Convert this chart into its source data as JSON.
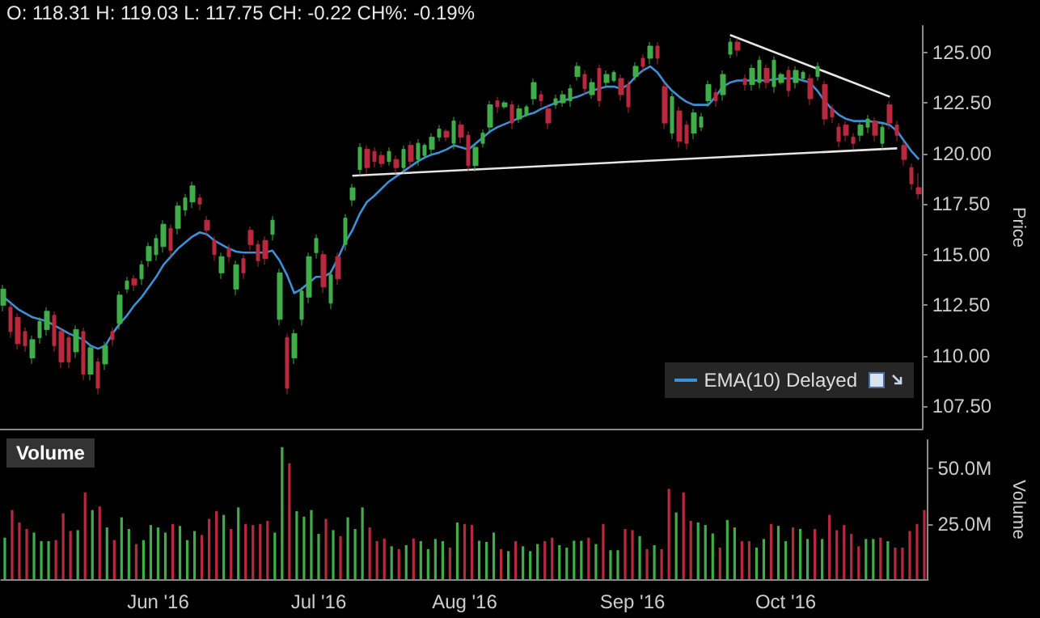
{
  "chart_data": [
    {
      "type": "candlestick",
      "ylabel": "Price",
      "annotations": [
        "O: 118.31 H: 119.03 L: 117.75 CH: -0.22 CH%: -0.19%"
      ],
      "legend": "bottom right",
      "tick_labels": "y",
      "ylim": [
        106.4,
        126.3
      ],
      "yticks": [
        {
          "value": 107.5,
          "label": "107.50"
        },
        {
          "value": 110,
          "label": "110.00"
        },
        {
          "value": 112.5,
          "label": "112.50"
        },
        {
          "value": 115,
          "label": "115.00"
        },
        {
          "value": 117.5,
          "label": "117.50"
        },
        {
          "value": 120,
          "label": "120.00"
        },
        {
          "value": 122.5,
          "label": "122.50"
        },
        {
          "value": 125,
          "label": "125.00"
        }
      ],
      "ohlc": [
        [
          112.5,
          113.5,
          112.2,
          113.3
        ],
        [
          112.4,
          112.6,
          110.9,
          111.2
        ],
        [
          111.9,
          112.1,
          110.3,
          110.6
        ],
        [
          111.2,
          111.4,
          110.2,
          110.5
        ],
        [
          109.9,
          111.0,
          109.6,
          110.8
        ],
        [
          110.9,
          111.9,
          110.6,
          111.7
        ],
        [
          111.3,
          112.4,
          111.0,
          112.2
        ],
        [
          112.0,
          112.2,
          110.2,
          110.5
        ],
        [
          111.2,
          111.4,
          109.4,
          109.7
        ],
        [
          110.9,
          111.1,
          109.4,
          109.7
        ],
        [
          110.2,
          111.5,
          109.9,
          111.3
        ],
        [
          111.2,
          111.4,
          108.8,
          109.1
        ],
        [
          109.1,
          110.6,
          108.8,
          110.4
        ],
        [
          109.7,
          109.9,
          108.1,
          108.4
        ],
        [
          109.6,
          110.7,
          109.3,
          110.5
        ],
        [
          111.2,
          111.4,
          110.5,
          110.8
        ],
        [
          111.6,
          113.2,
          111.3,
          113.0
        ],
        [
          113.3,
          113.9,
          113.1,
          113.7
        ],
        [
          113.8,
          114.0,
          113.2,
          113.5
        ],
        [
          113.8,
          114.7,
          113.5,
          114.5
        ],
        [
          114.7,
          115.6,
          114.4,
          115.4
        ],
        [
          115.0,
          116.0,
          114.7,
          115.8
        ],
        [
          115.4,
          116.7,
          115.1,
          116.5
        ],
        [
          116.3,
          116.5,
          114.9,
          115.2
        ],
        [
          116.3,
          117.6,
          116.0,
          117.4
        ],
        [
          117.2,
          118.0,
          116.9,
          117.8
        ],
        [
          117.6,
          118.6,
          117.3,
          118.4
        ],
        [
          117.8,
          118.0,
          117.2,
          117.5
        ],
        [
          116.7,
          116.9,
          115.9,
          116.2
        ],
        [
          115.7,
          115.9,
          114.7,
          115.0
        ],
        [
          114.1,
          115.1,
          113.8,
          114.9
        ],
        [
          115.3,
          115.5,
          114.6,
          114.9
        ],
        [
          113.3,
          114.7,
          113.0,
          114.5
        ],
        [
          114.8,
          115.0,
          113.8,
          114.1
        ],
        [
          116.2,
          116.4,
          115.2,
          115.5
        ],
        [
          115.5,
          115.7,
          114.4,
          114.7
        ],
        [
          115.7,
          115.9,
          114.5,
          114.8
        ],
        [
          116.0,
          116.9,
          115.7,
          116.7
        ],
        [
          111.8,
          114.3,
          111.5,
          114.1
        ],
        [
          110.9,
          111.1,
          108.1,
          108.4
        ],
        [
          109.9,
          111.3,
          109.6,
          111.1
        ],
        [
          111.8,
          113.4,
          111.5,
          113.2
        ],
        [
          112.9,
          115.1,
          112.6,
          114.9
        ],
        [
          115.1,
          116.0,
          114.8,
          115.8
        ],
        [
          115.0,
          115.2,
          113.1,
          113.4
        ],
        [
          112.6,
          114.2,
          112.3,
          114.0
        ],
        [
          114.9,
          115.1,
          113.5,
          113.8
        ],
        [
          115.5,
          117.0,
          115.2,
          116.8
        ],
        [
          117.7,
          118.5,
          117.4,
          118.3
        ],
        [
          119.2,
          120.5,
          118.9,
          120.3
        ],
        [
          120.2,
          120.4,
          119.0,
          119.3
        ],
        [
          120.1,
          120.3,
          119.3,
          119.6
        ],
        [
          119.9,
          120.1,
          119.3,
          119.5
        ],
        [
          119.6,
          120.3,
          119.4,
          120.1
        ],
        [
          119.7,
          119.9,
          119.0,
          119.3
        ],
        [
          119.3,
          120.4,
          119.0,
          120.2
        ],
        [
          120.4,
          120.6,
          119.3,
          119.6
        ],
        [
          119.7,
          120.7,
          119.4,
          120.5
        ],
        [
          119.9,
          120.5,
          119.8,
          120.4
        ],
        [
          120.2,
          121.0,
          119.9,
          120.8
        ],
        [
          120.8,
          121.4,
          120.6,
          121.2
        ],
        [
          121.1,
          121.2,
          120.6,
          120.8
        ],
        [
          120.5,
          121.8,
          120.2,
          121.6
        ],
        [
          121.4,
          121.6,
          120.5,
          120.8
        ],
        [
          120.9,
          121.1,
          119.1,
          119.4
        ],
        [
          119.4,
          120.5,
          119.1,
          120.3
        ],
        [
          120.5,
          121.2,
          120.3,
          121.0
        ],
        [
          121.3,
          122.6,
          121.0,
          122.4
        ],
        [
          122.6,
          122.8,
          122.0,
          122.3
        ],
        [
          122.3,
          122.6,
          122.2,
          122.5
        ],
        [
          122.4,
          122.6,
          121.2,
          121.5
        ],
        [
          121.7,
          122.4,
          121.5,
          122.2
        ],
        [
          121.9,
          122.4,
          121.8,
          122.3
        ],
        [
          122.7,
          123.7,
          122.4,
          123.5
        ],
        [
          122.9,
          123.1,
          122.3,
          122.6
        ],
        [
          122.2,
          122.4,
          121.2,
          121.5
        ],
        [
          122.4,
          122.9,
          122.2,
          122.7
        ],
        [
          122.5,
          123.1,
          122.3,
          122.9
        ],
        [
          122.6,
          123.4,
          122.3,
          123.2
        ],
        [
          123.8,
          124.5,
          123.6,
          124.3
        ],
        [
          123.9,
          124.1,
          122.9,
          123.2
        ],
        [
          122.9,
          123.7,
          122.7,
          123.5
        ],
        [
          124.2,
          124.4,
          122.3,
          122.6
        ],
        [
          123.5,
          124.1,
          123.3,
          123.9
        ],
        [
          123.6,
          124.1,
          123.5,
          124.0
        ],
        [
          123.7,
          123.9,
          122.6,
          122.9
        ],
        [
          123.4,
          123.6,
          122.0,
          122.3
        ],
        [
          123.8,
          124.5,
          123.6,
          124.3
        ],
        [
          124.7,
          124.9,
          124.0,
          124.3
        ],
        [
          124.7,
          125.5,
          124.4,
          125.3
        ],
        [
          125.3,
          125.5,
          124.4,
          124.7
        ],
        [
          123.3,
          123.5,
          121.2,
          121.5
        ],
        [
          121.0,
          123.0,
          120.7,
          122.8
        ],
        [
          122.1,
          122.3,
          120.3,
          120.6
        ],
        [
          121.4,
          121.6,
          120.2,
          120.5
        ],
        [
          121.0,
          122.2,
          120.7,
          122.0
        ],
        [
          121.3,
          122.0,
          121.1,
          121.8
        ],
        [
          122.6,
          123.6,
          122.3,
          123.4
        ],
        [
          123.0,
          123.2,
          122.3,
          122.6
        ],
        [
          122.9,
          124.1,
          122.6,
          123.9
        ],
        [
          124.9,
          125.7,
          124.7,
          125.5
        ],
        [
          125.5,
          125.7,
          124.8,
          125.1
        ],
        [
          123.7,
          123.9,
          123.1,
          123.4
        ],
        [
          123.4,
          124.4,
          123.1,
          124.2
        ],
        [
          123.5,
          124.8,
          123.2,
          124.6
        ],
        [
          124.2,
          124.4,
          123.2,
          123.5
        ],
        [
          123.3,
          124.8,
          123.0,
          124.6
        ],
        [
          123.5,
          124.0,
          123.4,
          123.9
        ],
        [
          124.1,
          124.3,
          122.8,
          123.1
        ],
        [
          123.5,
          124.3,
          123.2,
          124.1
        ],
        [
          123.7,
          124.1,
          123.6,
          124.0
        ],
        [
          123.7,
          123.9,
          122.4,
          122.7
        ],
        [
          123.8,
          124.5,
          123.6,
          124.3
        ],
        [
          123.4,
          123.6,
          121.4,
          121.7
        ],
        [
          122.2,
          122.4,
          121.5,
          121.8
        ],
        [
          121.3,
          121.5,
          120.3,
          120.6
        ],
        [
          121.4,
          121.6,
          120.6,
          120.9
        ],
        [
          120.8,
          121.0,
          120.2,
          120.5
        ],
        [
          120.9,
          121.6,
          120.6,
          121.4
        ],
        [
          121.3,
          121.9,
          121.0,
          121.7
        ],
        [
          121.6,
          121.8,
          120.6,
          120.9
        ],
        [
          120.5,
          121.5,
          120.2,
          121.3
        ],
        [
          122.4,
          122.6,
          121.2,
          121.5
        ],
        [
          121.4,
          121.6,
          120.6,
          120.9
        ],
        [
          120.4,
          120.6,
          119.4,
          119.7
        ],
        [
          119.3,
          119.5,
          118.2,
          118.5
        ],
        [
          118.31,
          119.03,
          117.75,
          118.0
        ]
      ],
      "colors": [
        "#3fae49",
        "#b8293d",
        "#b8293d",
        "#b8293d",
        "#3fae49",
        "#3fae49",
        "#3fae49",
        "#b8293d",
        "#b8293d",
        "#b8293d",
        "#3fae49",
        "#b8293d",
        "#3fae49",
        "#b8293d",
        "#3fae49",
        "#b8293d",
        "#3fae49",
        "#3fae49",
        "#b8293d",
        "#3fae49",
        "#3fae49",
        "#3fae49",
        "#3fae49",
        "#b8293d",
        "#3fae49",
        "#3fae49",
        "#3fae49",
        "#b8293d",
        "#b8293d",
        "#b8293d",
        "#3fae49",
        "#b8293d",
        "#3fae49",
        "#b8293d",
        "#b8293d",
        "#b8293d",
        "#b8293d",
        "#3fae49",
        "#3fae49",
        "#b8293d",
        "#3fae49",
        "#3fae49",
        "#3fae49",
        "#3fae49",
        "#b8293d",
        "#3fae49",
        "#b8293d",
        "#3fae49",
        "#3fae49",
        "#3fae49",
        "#b8293d",
        "#b8293d",
        "#b8293d",
        "#3fae49",
        "#b8293d",
        "#3fae49",
        "#b8293d",
        "#3fae49",
        "#3fae49",
        "#3fae49",
        "#3fae49",
        "#b8293d",
        "#3fae49",
        "#b8293d",
        "#b8293d",
        "#3fae49",
        "#3fae49",
        "#3fae49",
        "#b8293d",
        "#3fae49",
        "#b8293d",
        "#3fae49",
        "#3fae49",
        "#3fae49",
        "#b8293d",
        "#b8293d",
        "#3fae49",
        "#3fae49",
        "#3fae49",
        "#3fae49",
        "#b8293d",
        "#3fae49",
        "#b8293d",
        "#3fae49",
        "#3fae49",
        "#b8293d",
        "#b8293d",
        "#3fae49",
        "#b8293d",
        "#3fae49",
        "#b8293d",
        "#b8293d",
        "#3fae49",
        "#b8293d",
        "#b8293d",
        "#3fae49",
        "#3fae49",
        "#3fae49",
        "#b8293d",
        "#3fae49",
        "#3fae49",
        "#b8293d",
        "#b8293d",
        "#3fae49",
        "#3fae49",
        "#b8293d",
        "#3fae49",
        "#3fae49",
        "#b8293d",
        "#3fae49",
        "#3fae49",
        "#b8293d",
        "#3fae49",
        "#b8293d",
        "#b8293d",
        "#b8293d",
        "#b8293d",
        "#b8293d",
        "#3fae49",
        "#3fae49",
        "#b8293d",
        "#3fae49",
        "#b8293d",
        "#b8293d",
        "#b8293d",
        "#b8293d",
        "#b8293d"
      ],
      "series": [
        {
          "name": "EMA(10) Delayed",
          "type": "line",
          "color": "#3d8fd6",
          "values": [
            112.9,
            112.6,
            112.3,
            112.1,
            111.9,
            111.8,
            111.7,
            111.5,
            111.3,
            111.1,
            110.95,
            110.8,
            110.5,
            110.35,
            110.5,
            111.1,
            111.6,
            112.0,
            112.5,
            112.9,
            113.4,
            113.9,
            114.5,
            114.9,
            115.3,
            115.6,
            115.9,
            116.1,
            116.0,
            115.7,
            115.5,
            115.3,
            115.15,
            115.1,
            115.1,
            115.1,
            115.1,
            115.2,
            114.7,
            114.0,
            113.1,
            113.3,
            113.6,
            113.9,
            113.9,
            114.1,
            114.8,
            115.6,
            116.2,
            117.0,
            117.6,
            117.9,
            118.25,
            118.6,
            118.85,
            119.1,
            119.35,
            119.6,
            119.8,
            119.95,
            120.05,
            120.2,
            120.4,
            120.3,
            120.2,
            120.5,
            120.8,
            121.1,
            121.3,
            121.45,
            121.6,
            121.75,
            121.9,
            122.0,
            122.2,
            122.35,
            122.5,
            122.6,
            122.7,
            122.8,
            122.95,
            123.1,
            123.2,
            123.3,
            123.3,
            123.2,
            123.4,
            123.8,
            124.1,
            124.3,
            124.0,
            123.5,
            123.1,
            122.8,
            122.55,
            122.4,
            122.4,
            122.4,
            122.8,
            123.3,
            123.5,
            123.6,
            123.6,
            123.6,
            123.6,
            123.6,
            123.65,
            123.7,
            123.7,
            123.7,
            123.6,
            123.5,
            123.1,
            122.6,
            122.2,
            121.9,
            121.7,
            121.6,
            121.6,
            121.6,
            121.55,
            121.5,
            121.4,
            121.1,
            120.6,
            120.1,
            119.7
          ]
        },
        {
          "type": "line",
          "color": "#e6e6e6",
          "values": [
            null,
            null,
            null,
            null,
            null,
            null,
            null,
            null,
            null,
            null,
            null,
            null,
            null,
            null,
            null,
            null,
            null,
            null,
            null,
            null,
            null,
            null,
            null,
            null,
            null,
            null,
            null,
            null,
            null,
            null,
            null,
            null,
            null,
            null,
            null,
            null,
            null,
            null,
            null,
            null,
            null,
            null,
            null,
            null,
            null,
            null,
            null,
            null,
            118.9,
            null,
            null,
            null,
            null,
            null,
            null,
            null,
            null,
            null,
            null,
            null,
            null,
            null,
            null,
            null,
            null,
            null,
            null,
            null,
            null,
            null,
            null,
            null,
            null,
            null,
            null,
            null,
            null,
            null,
            null,
            null,
            null,
            null,
            null,
            null,
            null,
            null,
            null,
            null,
            null,
            null,
            null,
            null,
            null,
            null,
            null,
            null,
            null,
            null,
            null,
            null,
            null,
            null,
            null,
            null,
            null,
            null,
            null,
            null,
            null,
            null,
            null,
            null,
            null,
            null,
            null,
            null,
            null,
            null,
            null,
            null,
            null,
            null,
            null,
            120.25,
            null,
            null,
            null
          ]
        },
        {
          "type": "line",
          "color": "#e6e6e6",
          "values": [
            null,
            null,
            null,
            null,
            null,
            null,
            null,
            null,
            null,
            null,
            null,
            null,
            null,
            null,
            null,
            null,
            null,
            null,
            null,
            null,
            null,
            null,
            null,
            null,
            null,
            null,
            null,
            null,
            null,
            null,
            null,
            null,
            null,
            null,
            null,
            null,
            null,
            null,
            null,
            null,
            null,
            null,
            null,
            null,
            null,
            null,
            null,
            null,
            null,
            null,
            null,
            null,
            null,
            null,
            null,
            null,
            null,
            null,
            null,
            null,
            null,
            null,
            null,
            null,
            null,
            null,
            null,
            null,
            null,
            null,
            null,
            null,
            null,
            null,
            null,
            null,
            null,
            null,
            null,
            null,
            null,
            null,
            null,
            null,
            null,
            null,
            null,
            null,
            null,
            null,
            null,
            null,
            null,
            null,
            null,
            null,
            null,
            null,
            null,
            null,
            125.85,
            null,
            null,
            null,
            null,
            null,
            null,
            null,
            null,
            null,
            null,
            null,
            null,
            null,
            null,
            null,
            null,
            null,
            null,
            null,
            null,
            null,
            122.8,
            null,
            null,
            null,
            null
          ]
        }
      ]
    },
    {
      "type": "bar",
      "title": "Volume",
      "ylabel": "Volume",
      "ylim": [
        0,
        63000000
      ],
      "yticks": [
        {
          "value": 25000000,
          "label": "25.0M"
        },
        {
          "value": 50000000,
          "label": "50.0M"
        }
      ],
      "categories": [
        null,
        null,
        null,
        null,
        null,
        null,
        null,
        null,
        null,
        null,
        null,
        null,
        null,
        null,
        null,
        null,
        null,
        null,
        null,
        null,
        null,
        "Jun '16",
        null,
        null,
        null,
        null,
        null,
        null,
        null,
        null,
        null,
        null,
        null,
        null,
        null,
        null,
        null,
        null,
        null,
        null,
        null,
        null,
        null,
        "Jul '16",
        null,
        null,
        null,
        null,
        null,
        null,
        null,
        null,
        null,
        null,
        null,
        null,
        null,
        null,
        null,
        null,
        null,
        null,
        null,
        "Aug '16",
        null,
        null,
        null,
        null,
        null,
        null,
        null,
        null,
        null,
        null,
        null,
        null,
        null,
        null,
        null,
        null,
        null,
        null,
        null,
        null,
        null,
        null,
        "Sep '16",
        null,
        null,
        null,
        null,
        null,
        null,
        null,
        null,
        null,
        null,
        null,
        null,
        null,
        null,
        null,
        null,
        null,
        null,
        null,
        null,
        "Oct '16",
        null,
        null,
        null,
        null,
        null,
        null,
        null,
        null,
        null,
        null,
        null,
        null,
        null,
        null,
        null,
        null,
        null,
        null,
        null
      ],
      "values": [
        18800000,
        31300000,
        25700000,
        22700000,
        21100000,
        17200000,
        17200000,
        17700000,
        29800000,
        21800000,
        22200000,
        39300000,
        31300000,
        32900000,
        23400000,
        17700000,
        28000000,
        22700000,
        15900000,
        17700000,
        24500000,
        23400000,
        21100000,
        25000000,
        24100000,
        17700000,
        21800000,
        20000000,
        27300000,
        30800000,
        29100000,
        22700000,
        32500000,
        25000000,
        24500000,
        25000000,
        26400000,
        21100000,
        59800000,
        52500000,
        30800000,
        28300000,
        31300000,
        20500000,
        27300000,
        22200000,
        19500000,
        28000000,
        22700000,
        32500000,
        23400000,
        17200000,
        18400000,
        14900000,
        13600000,
        15400000,
        18400000,
        17200000,
        13600000,
        18200000,
        17200000,
        14300000,
        25700000,
        25000000,
        24500000,
        17400000,
        16900000,
        21100000,
        13600000,
        12700000,
        17200000,
        14900000,
        12700000,
        15900000,
        17200000,
        18800000,
        15400000,
        14300000,
        17400000,
        17400000,
        18800000,
        15900000,
        25000000,
        13100000,
        13100000,
        22700000,
        22200000,
        19500000,
        13600000,
        15400000,
        13600000,
        40900000,
        30200000,
        39300000,
        26400000,
        25700000,
        24500000,
        20700000,
        14300000,
        26800000,
        23400000,
        17200000,
        17200000,
        14300000,
        18200000,
        25000000,
        24100000,
        17200000,
        23400000,
        22700000,
        18200000,
        22700000,
        18200000,
        29100000,
        22200000,
        24500000,
        20500000,
        14900000,
        18200000,
        18200000,
        18800000,
        17200000,
        14300000,
        14300000,
        21800000,
        25000000,
        31300000
      ],
      "colors": [
        "#3fae49",
        "#b8293d",
        "#b8293d",
        "#b8293d",
        "#3fae49",
        "#3fae49",
        "#3fae49",
        "#b8293d",
        "#b8293d",
        "#b8293d",
        "#3fae49",
        "#b8293d",
        "#3fae49",
        "#b8293d",
        "#3fae49",
        "#b8293d",
        "#3fae49",
        "#3fae49",
        "#b8293d",
        "#3fae49",
        "#3fae49",
        "#3fae49",
        "#3fae49",
        "#b8293d",
        "#3fae49",
        "#3fae49",
        "#3fae49",
        "#b8293d",
        "#b8293d",
        "#b8293d",
        "#3fae49",
        "#b8293d",
        "#3fae49",
        "#b8293d",
        "#b8293d",
        "#b8293d",
        "#b8293d",
        "#3fae49",
        "#3fae49",
        "#b8293d",
        "#3fae49",
        "#3fae49",
        "#3fae49",
        "#3fae49",
        "#b8293d",
        "#3fae49",
        "#b8293d",
        "#3fae49",
        "#3fae49",
        "#3fae49",
        "#b8293d",
        "#b8293d",
        "#b8293d",
        "#3fae49",
        "#b8293d",
        "#3fae49",
        "#b8293d",
        "#3fae49",
        "#3fae49",
        "#3fae49",
        "#3fae49",
        "#b8293d",
        "#3fae49",
        "#b8293d",
        "#b8293d",
        "#3fae49",
        "#3fae49",
        "#3fae49",
        "#b8293d",
        "#3fae49",
        "#b8293d",
        "#3fae49",
        "#3fae49",
        "#3fae49",
        "#b8293d",
        "#b8293d",
        "#3fae49",
        "#3fae49",
        "#3fae49",
        "#3fae49",
        "#b8293d",
        "#3fae49",
        "#b8293d",
        "#3fae49",
        "#3fae49",
        "#b8293d",
        "#b8293d",
        "#3fae49",
        "#b8293d",
        "#3fae49",
        "#b8293d",
        "#b8293d",
        "#3fae49",
        "#b8293d",
        "#b8293d",
        "#3fae49",
        "#3fae49",
        "#3fae49",
        "#b8293d",
        "#3fae49",
        "#3fae49",
        "#b8293d",
        "#b8293d",
        "#3fae49",
        "#3fae49",
        "#b8293d",
        "#3fae49",
        "#3fae49",
        "#b8293d",
        "#3fae49",
        "#3fae49",
        "#b8293d",
        "#3fae49",
        "#b8293d",
        "#b8293d",
        "#b8293d",
        "#b8293d",
        "#b8293d",
        "#3fae49",
        "#3fae49",
        "#b8293d",
        "#3fae49",
        "#b8293d",
        "#b8293d",
        "#b8293d",
        "#b8293d",
        "#b8293d"
      ]
    }
  ]
}
